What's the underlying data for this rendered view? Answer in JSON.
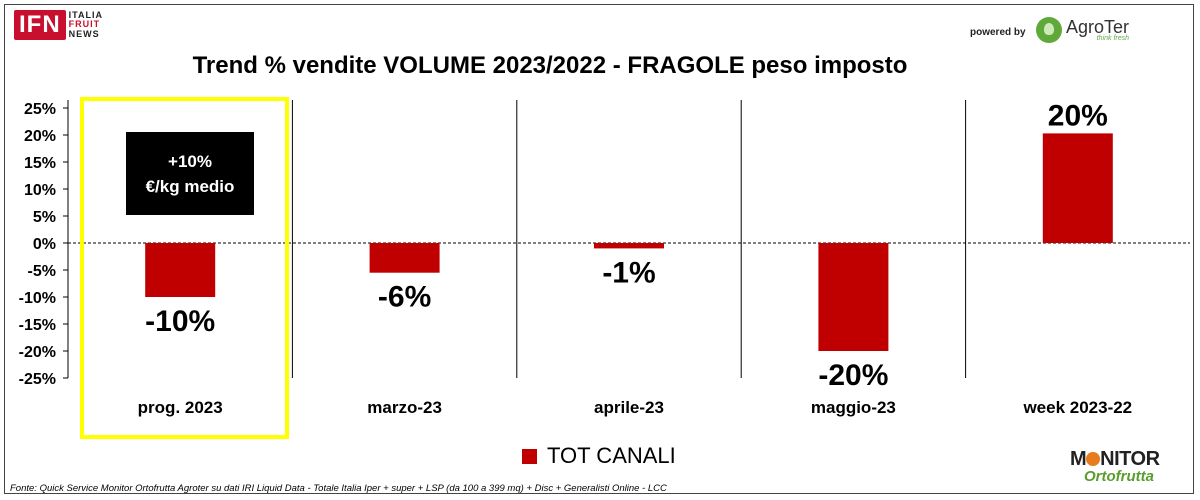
{
  "header": {
    "logo_ifn": {
      "badge": "IFN",
      "line1": "ITALIA",
      "line2": "FRUIT",
      "line3": "NEWS"
    },
    "powered_by": "powered by",
    "agroter": {
      "name": "AgroTer",
      "tagline": "think fresh"
    }
  },
  "annotation": {
    "line1": "+10%",
    "line2": "€/kg medio"
  },
  "legend_label": "TOT CANALI",
  "footnote": "Fonte: Quick Service Monitor Ortofrutta Agroter su dati IRI Liquid Data - Totale Italia Iper + super + LSP (da 100 a 399 mq) + Disc + Generalisti Online - LCC",
  "monitor": {
    "line1a": "M",
    "line1b": "NITOR",
    "line2": "Ortofrutta"
  },
  "colors": {
    "bar": "#c00000",
    "highlight": "#ffff00"
  },
  "chart_data": {
    "type": "bar",
    "title": "Trend % vendite VOLUME 2023/2022 - FRAGOLE peso imposto",
    "categories": [
      "prog. 2023",
      "marzo-23",
      "aprile-23",
      "maggio-23",
      "week 2023-22"
    ],
    "series": [
      {
        "name": "TOT CANALI",
        "values": [
          -10,
          -5.5,
          -1,
          -20,
          20.3
        ],
        "data_labels": [
          "-10%",
          "-6%",
          "-1%",
          "-20%",
          "20%"
        ]
      }
    ],
    "ylim": [
      -25,
      25
    ],
    "yticks": [
      "25%",
      "20%",
      "15%",
      "10%",
      "5%",
      "0%",
      "-5%",
      "-10%",
      "-15%",
      "-20%",
      "-25%"
    ],
    "ytick_values": [
      25,
      20,
      15,
      10,
      5,
      0,
      -5,
      -10,
      -15,
      -20,
      -25
    ],
    "zero_line": "dashed",
    "legend": "bottom"
  }
}
